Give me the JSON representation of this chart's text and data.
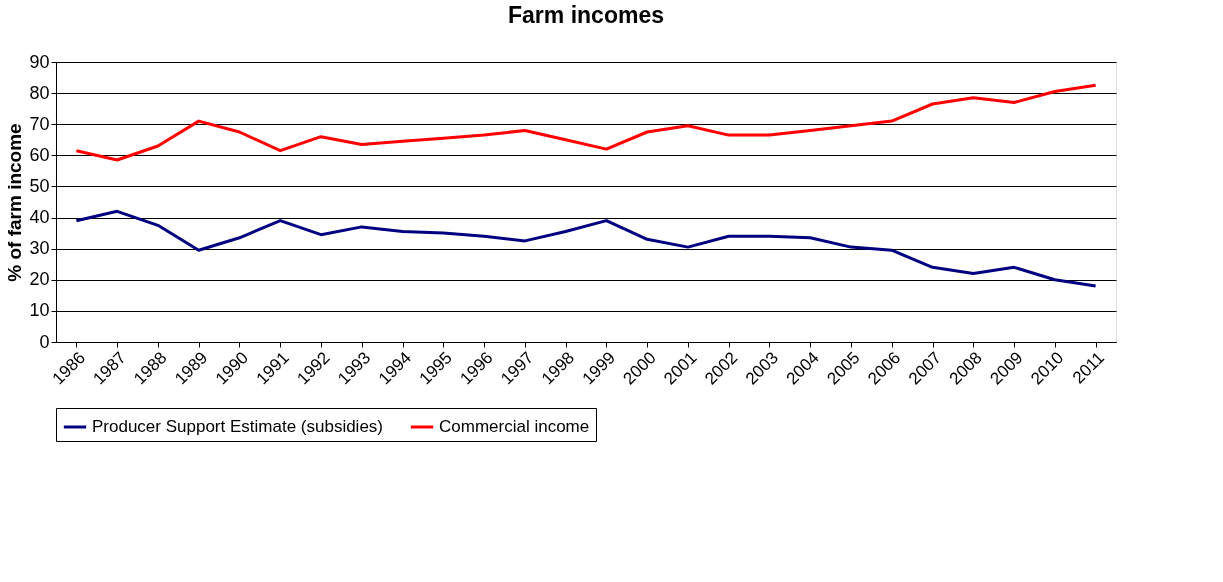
{
  "chart_data": {
    "type": "line",
    "title": "Farm incomes",
    "ylabel": "% of farm income",
    "categories": [
      "1986",
      "1987",
      "1988",
      "1989",
      "1990",
      "1991",
      "1992",
      "1993",
      "1994",
      "1995",
      "1996",
      "1997",
      "1998",
      "1999",
      "2000",
      "2001",
      "2002",
      "2003",
      "2004",
      "2005",
      "2006",
      "2007",
      "2008",
      "2009",
      "2010",
      "2011"
    ],
    "series": [
      {
        "name": "Producer Support Estimate (subsidies)",
        "color": "#000080",
        "values": [
          39,
          42,
          37.5,
          29.5,
          33.5,
          39,
          34.5,
          37,
          35.5,
          35,
          34,
          32.5,
          35.5,
          39,
          33,
          30.5,
          34,
          34,
          33.5,
          30.5,
          29.5,
          24,
          22,
          24,
          20,
          18
        ]
      },
      {
        "name": "Commercial income",
        "color": "#ff0000",
        "values": [
          61.5,
          58.5,
          63,
          71,
          67.5,
          61.5,
          66,
          63.5,
          64.5,
          65.5,
          66.5,
          68,
          65,
          62,
          67.5,
          69.5,
          66.5,
          66.5,
          68,
          69.5,
          71,
          76.5,
          78.5,
          77,
          80.5,
          82.5
        ]
      }
    ],
    "ylim": [
      0,
      90
    ],
    "yticks": [
      0,
      10,
      20,
      30,
      40,
      50,
      60,
      70,
      80,
      90
    ],
    "grid": "y",
    "legend": "bottom",
    "marker": "none",
    "line_style": "solid"
  }
}
